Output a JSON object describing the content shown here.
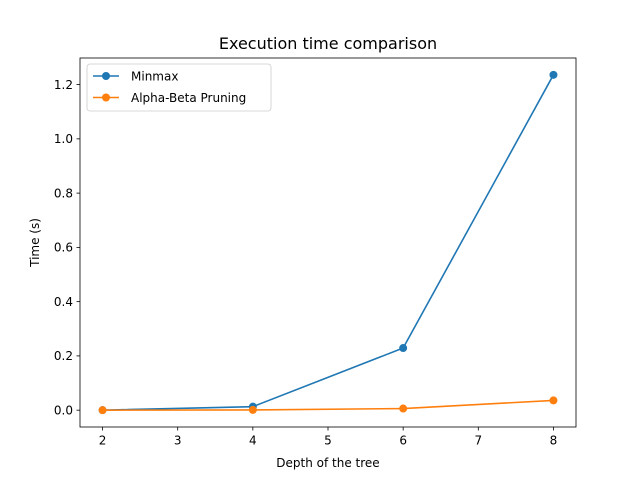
{
  "chart_data": {
    "type": "line",
    "title": "Execution time comparison",
    "xlabel": "Depth of the tree",
    "ylabel": "Time (s)",
    "x": [
      2,
      4,
      6,
      8
    ],
    "series": [
      {
        "name": "Minmax",
        "values": [
          0.0,
          0.013,
          0.229,
          1.236
        ],
        "color": "#1f77b4",
        "marker": "circle"
      },
      {
        "name": "Alpha-Beta Pruning",
        "values": [
          0.0,
          0.001,
          0.006,
          0.036
        ],
        "color": "#ff7f0e",
        "marker": "circle"
      }
    ],
    "xlim": [
      1.7,
      8.3
    ],
    "ylim": [
      -0.062,
      1.298
    ],
    "xticks": [
      2,
      3,
      4,
      5,
      6,
      7,
      8
    ],
    "yticks": [
      0.0,
      0.2,
      0.4,
      0.6,
      0.8,
      1.0,
      1.2
    ],
    "xtick_labels": [
      "2",
      "3",
      "4",
      "5",
      "6",
      "7",
      "8"
    ],
    "ytick_labels": [
      "0.0",
      "0.2",
      "0.4",
      "0.6",
      "0.8",
      "1.0",
      "1.2"
    ],
    "grid": false,
    "legend_position": "upper-left"
  }
}
